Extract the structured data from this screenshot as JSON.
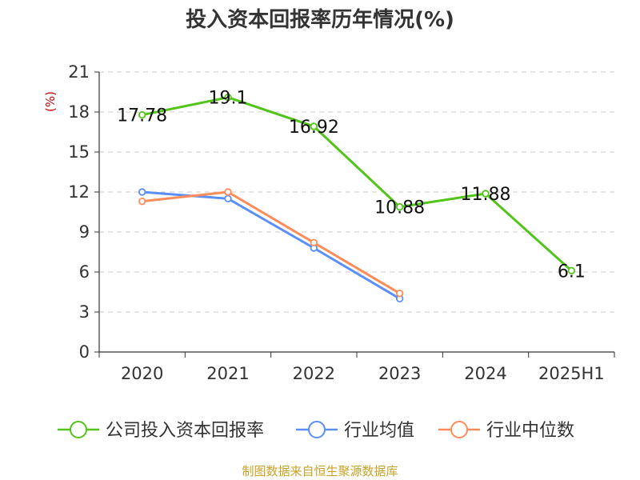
{
  "chart_data": {
    "type": "line",
    "title": "投入资本回报率历年情况(%)",
    "unit_label": "(%)",
    "categories": [
      "2020",
      "2021",
      "2022",
      "2023",
      "2024",
      "2025H1"
    ],
    "ylim": [
      0,
      21
    ],
    "yticks": [
      0,
      3,
      6,
      9,
      12,
      15,
      18,
      21
    ],
    "grid": true,
    "legend_position": "bottom",
    "series": [
      {
        "name": "公司投入资本回报率",
        "color": "#52c41a",
        "values": [
          17.78,
          19.1,
          16.92,
          10.88,
          11.88,
          6.1
        ],
        "labels": [
          "17.78",
          "19.1",
          "16.92",
          "10.88",
          "11.88",
          "6.1"
        ]
      },
      {
        "name": "行业均值",
        "color": "#5b8ff9",
        "values": [
          12.0,
          11.5,
          7.8,
          4.0,
          null,
          null
        ]
      },
      {
        "name": "行业中位数",
        "color": "#ff8c5a",
        "values": [
          11.3,
          12.0,
          8.2,
          4.4,
          null,
          null
        ]
      }
    ],
    "source": "制图数据来自恒生聚源数据库"
  },
  "colors": {
    "unit": "#cc0000",
    "source": "#c9a227",
    "grid": "#cccccc",
    "axis": "#333333"
  }
}
